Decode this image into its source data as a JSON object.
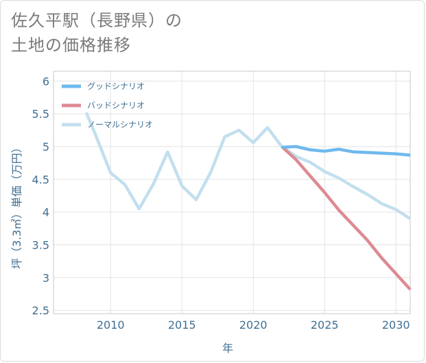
{
  "title": {
    "line1": "佐久平駅（長野県）の",
    "line2": "土地の価格推移"
  },
  "chart_data": {
    "type": "line",
    "xlabel": "年",
    "ylabel": "坪（3.3㎡）単価（万円）",
    "xlim": [
      2006,
      2031
    ],
    "ylim": [
      2.45,
      6.15
    ],
    "x_ticks": [
      2010,
      2015,
      2020,
      2025,
      2030
    ],
    "y_ticks": [
      2.5,
      3,
      3.5,
      4,
      4.5,
      5,
      5.5,
      6
    ],
    "y_tick_labels": [
      "2.5",
      "3",
      "3.5",
      "4",
      "4.5",
      "5",
      "5.5",
      "6"
    ],
    "grid": true,
    "legend_position": "top-left",
    "series": [
      {
        "name": "グッドシナリオ",
        "color": "#6fb9ee",
        "x": [
          2022,
          2023,
          2024,
          2025,
          2026,
          2027,
          2028,
          2029,
          2030,
          2031
        ],
        "y": [
          4.99,
          5.0,
          4.95,
          4.93,
          4.96,
          4.92,
          4.91,
          4.9,
          4.89,
          4.87
        ]
      },
      {
        "name": "バッドシナリオ",
        "color": "#dd8a93",
        "x": [
          2022,
          2023,
          2024,
          2025,
          2026,
          2027,
          2028,
          2029,
          2030,
          2031
        ],
        "y": [
          5.0,
          4.8,
          4.55,
          4.3,
          4.03,
          3.8,
          3.57,
          3.3,
          3.06,
          2.82
        ]
      },
      {
        "name": "ノーマルシナリオ",
        "color": "#c3dfee",
        "x": [
          2008.3,
          2009,
          2010,
          2011,
          2012,
          2013,
          2014,
          2015,
          2016,
          2017,
          2018,
          2019,
          2020,
          2021,
          2022,
          2023,
          2024,
          2025,
          2026,
          2027,
          2028,
          2029,
          2030,
          2031
        ],
        "y": [
          5.52,
          5.15,
          4.6,
          4.42,
          4.05,
          4.43,
          4.92,
          4.4,
          4.19,
          4.6,
          5.15,
          5.25,
          5.06,
          5.29,
          5.0,
          4.85,
          4.76,
          4.62,
          4.52,
          4.39,
          4.27,
          4.13,
          4.04,
          3.9
        ]
      }
    ]
  }
}
